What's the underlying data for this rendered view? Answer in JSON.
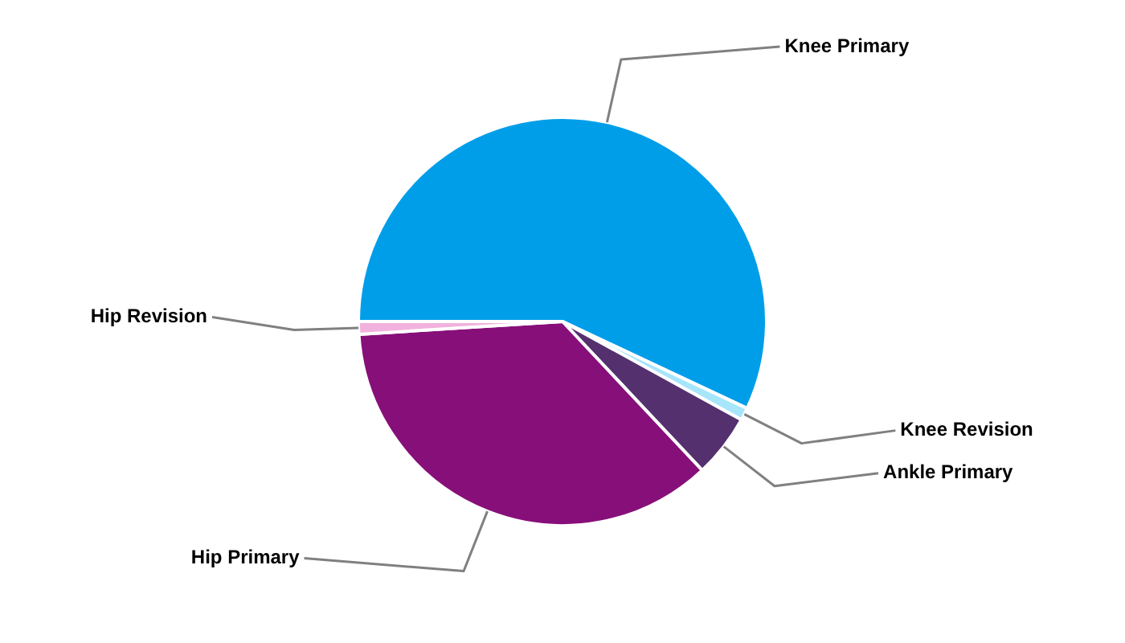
{
  "chart_data": {
    "type": "pie",
    "categories": [
      "Knee Primary",
      "Knee Revision",
      "Ankle Primary",
      "Hip Primary",
      "Hip Revision"
    ],
    "values": [
      57,
      1,
      5,
      36,
      1
    ],
    "colors": [
      "#009ee9",
      "#a7e5fb",
      "#55306f",
      "#870f79",
      "#f2b2dd"
    ],
    "legend": false
  }
}
